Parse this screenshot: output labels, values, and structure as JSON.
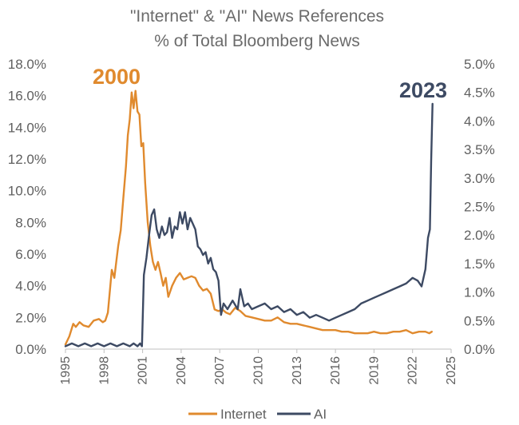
{
  "chart_data": {
    "type": "line",
    "title": "\"Internet\" & \"AI\" News References",
    "subtitle": "% of Total Bloomberg News",
    "x_ticks": [
      "1995",
      "1998",
      "2001",
      "2004",
      "2007",
      "2010",
      "2013",
      "2016",
      "2019",
      "2022",
      "2025"
    ],
    "x_range": [
      1995,
      2025
    ],
    "y_left_ticks": [
      "0.0%",
      "2.0%",
      "4.0%",
      "6.0%",
      "8.0%",
      "10.0%",
      "12.0%",
      "14.0%",
      "16.0%",
      "18.0%"
    ],
    "y_left_range": [
      0,
      18
    ],
    "y_right_ticks": [
      "0.0%",
      "0.5%",
      "1.0%",
      "1.5%",
      "2.0%",
      "2.5%",
      "3.0%",
      "3.5%",
      "4.0%",
      "4.5%",
      "5.0%"
    ],
    "y_right_range": [
      0,
      5
    ],
    "annotations": [
      {
        "text": "2000",
        "color": "#e08a2e"
      },
      {
        "text": "2023",
        "color": "#3d4a63"
      }
    ],
    "grid": false,
    "legend_position": "bottom",
    "series": [
      {
        "name": "Internet",
        "axis": "left",
        "color": "#e08a2e",
        "x": [
          1995,
          1995.3,
          1995.6,
          1995.8,
          1996.1,
          1996.4,
          1996.8,
          1997.2,
          1997.6,
          1997.9,
          1998.1,
          1998.3,
          1998.6,
          1998.8,
          1998.95,
          1999.1,
          1999.3,
          1999.5,
          1999.7,
          1999.85,
          2000.0,
          2000.15,
          2000.3,
          2000.45,
          2000.6,
          2000.75,
          2000.9,
          2001.05,
          2001.2,
          2001.4,
          2001.6,
          2001.8,
          2002.0,
          2002.2,
          2002.4,
          2002.6,
          2002.8,
          2003.0,
          2003.3,
          2003.6,
          2003.9,
          2004.2,
          2004.5,
          2004.8,
          2005.1,
          2005.4,
          2005.7,
          2006.0,
          2006.3,
          2006.6,
          2006.9,
          2007.2,
          2007.5,
          2007.8,
          2008.2,
          2008.6,
          2009.0,
          2009.5,
          2010.0,
          2010.5,
          2011.0,
          2011.5,
          2012.0,
          2012.5,
          2013.0,
          2013.5,
          2014.0,
          2014.5,
          2015.0,
          2015.5,
          2016.0,
          2016.5,
          2017.0,
          2017.5,
          2018.0,
          2018.5,
          2019.0,
          2019.5,
          2020.0,
          2020.5,
          2021.0,
          2021.5,
          2022.0,
          2022.5,
          2023.0,
          2023.3,
          2023.5
        ],
        "y": [
          0.3,
          0.8,
          1.6,
          1.4,
          1.7,
          1.5,
          1.4,
          1.8,
          1.9,
          1.7,
          1.8,
          2.3,
          5.0,
          4.5,
          5.5,
          6.5,
          7.5,
          9.5,
          11.5,
          13.5,
          14.5,
          16.2,
          15.2,
          16.3,
          15.0,
          14.8,
          12.8,
          13.0,
          10.5,
          8.0,
          6.5,
          5.5,
          5.0,
          5.5,
          4.8,
          4.0,
          4.5,
          3.3,
          4.0,
          4.5,
          4.8,
          4.4,
          4.5,
          4.6,
          4.5,
          4.0,
          3.7,
          3.8,
          3.5,
          2.5,
          2.4,
          2.5,
          2.3,
          2.2,
          2.6,
          2.4,
          2.1,
          2.0,
          1.9,
          1.8,
          1.8,
          2.0,
          1.7,
          1.6,
          1.6,
          1.5,
          1.4,
          1.3,
          1.2,
          1.2,
          1.2,
          1.1,
          1.1,
          1.0,
          1.0,
          1.0,
          1.1,
          1.0,
          1.0,
          1.1,
          1.1,
          1.2,
          1.0,
          1.1,
          1.1,
          1.0,
          1.1
        ]
      },
      {
        "name": "AI",
        "axis": "right",
        "color": "#3d4a63",
        "x": [
          1995,
          1995.5,
          1996,
          1996.5,
          1997,
          1997.5,
          1998,
          1998.5,
          1999,
          1999.5,
          2000,
          2000.3,
          2000.6,
          2000.8,
          2000.95,
          2001.1,
          2001.3,
          2001.5,
          2001.7,
          2001.9,
          2002.1,
          2002.3,
          2002.5,
          2002.7,
          2002.9,
          2003.1,
          2003.3,
          2003.5,
          2003.7,
          2003.9,
          2004.1,
          2004.3,
          2004.5,
          2004.7,
          2004.9,
          2005.1,
          2005.3,
          2005.5,
          2005.7,
          2005.9,
          2006.1,
          2006.3,
          2006.5,
          2006.7,
          2006.9,
          2007.1,
          2007.3,
          2007.6,
          2008.0,
          2008.4,
          2008.6,
          2008.9,
          2009.2,
          2009.5,
          2010.0,
          2010.5,
          2011.0,
          2011.5,
          2012.0,
          2012.5,
          2013.0,
          2013.5,
          2014.0,
          2014.5,
          2015.0,
          2015.5,
          2016.0,
          2016.5,
          2017.0,
          2017.5,
          2018.0,
          2018.5,
          2019.0,
          2019.5,
          2020.0,
          2020.5,
          2021.0,
          2021.5,
          2022.0,
          2022.4,
          2022.7,
          2023.0,
          2023.2,
          2023.35,
          2023.45,
          2023.55
        ],
        "y": [
          0.05,
          0.1,
          0.05,
          0.1,
          0.05,
          0.1,
          0.05,
          0.1,
          0.05,
          0.1,
          0.05,
          0.1,
          0.05,
          0.1,
          0.05,
          1.3,
          1.6,
          2.0,
          2.35,
          2.45,
          2.1,
          1.95,
          2.15,
          2.0,
          2.05,
          2.3,
          1.95,
          2.15,
          2.1,
          2.4,
          2.2,
          2.4,
          2.1,
          2.3,
          2.2,
          2.1,
          1.8,
          1.75,
          1.65,
          1.7,
          1.5,
          1.6,
          1.4,
          1.35,
          1.2,
          0.6,
          0.8,
          0.7,
          0.85,
          0.7,
          1.05,
          0.75,
          0.8,
          0.7,
          0.75,
          0.8,
          0.7,
          0.75,
          0.65,
          0.7,
          0.6,
          0.65,
          0.55,
          0.6,
          0.55,
          0.5,
          0.55,
          0.6,
          0.65,
          0.7,
          0.8,
          0.85,
          0.9,
          0.95,
          1.0,
          1.05,
          1.1,
          1.15,
          1.25,
          1.2,
          1.1,
          1.4,
          1.95,
          2.1,
          3.3,
          4.3
        ]
      }
    ]
  }
}
